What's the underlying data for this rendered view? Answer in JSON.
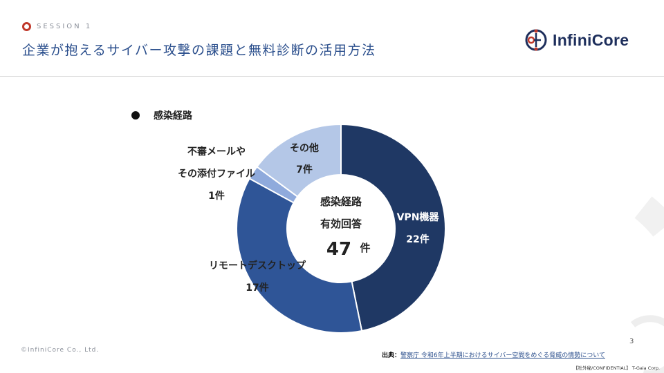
{
  "header": {
    "session_label": "SESSION 1",
    "title": "企業が抱えるサイバー攻撃の課題と無料診断の活用方法"
  },
  "logo": {
    "text": "InfiniCore",
    "icon": "infinicore-logo-icon"
  },
  "colors": {
    "accent_red": "#c0392b",
    "title_blue": "#2a4e8c",
    "slice_vpn": "#1f3864",
    "slice_remote": "#2f5597",
    "slice_mail": "#8faadc",
    "slice_other": "#b4c7e7"
  },
  "chart_data": {
    "type": "pie",
    "donut": true,
    "legend": {
      "label": "感染経路",
      "placement": "top-left"
    },
    "center": {
      "line1": "感染経路",
      "line2": "有効回答",
      "total": "47",
      "unit": "件"
    },
    "series": [
      {
        "name": "VPN機器",
        "value": 22,
        "value_label": "22件"
      },
      {
        "name": "リモートデスクトップ",
        "value": 17,
        "value_label": "17件"
      },
      {
        "name": "不審メールやその添付ファイル",
        "name_lines": [
          "不審メールや",
          "その添付ファイル"
        ],
        "value": 1,
        "value_label": "1件"
      },
      {
        "name": "その他",
        "value": 7,
        "value_label": "7件"
      }
    ]
  },
  "footer": {
    "copyright": "©InfiniCore Co., Ltd.",
    "page_number": "3",
    "source_prefix": "出典：",
    "source_text": "警察庁 令和6年上半期におけるサイバー空間をめぐる脅威の情勢について",
    "confidential": "【社外秘/CONFIDENTIAL】 T-Gaia Corp."
  }
}
